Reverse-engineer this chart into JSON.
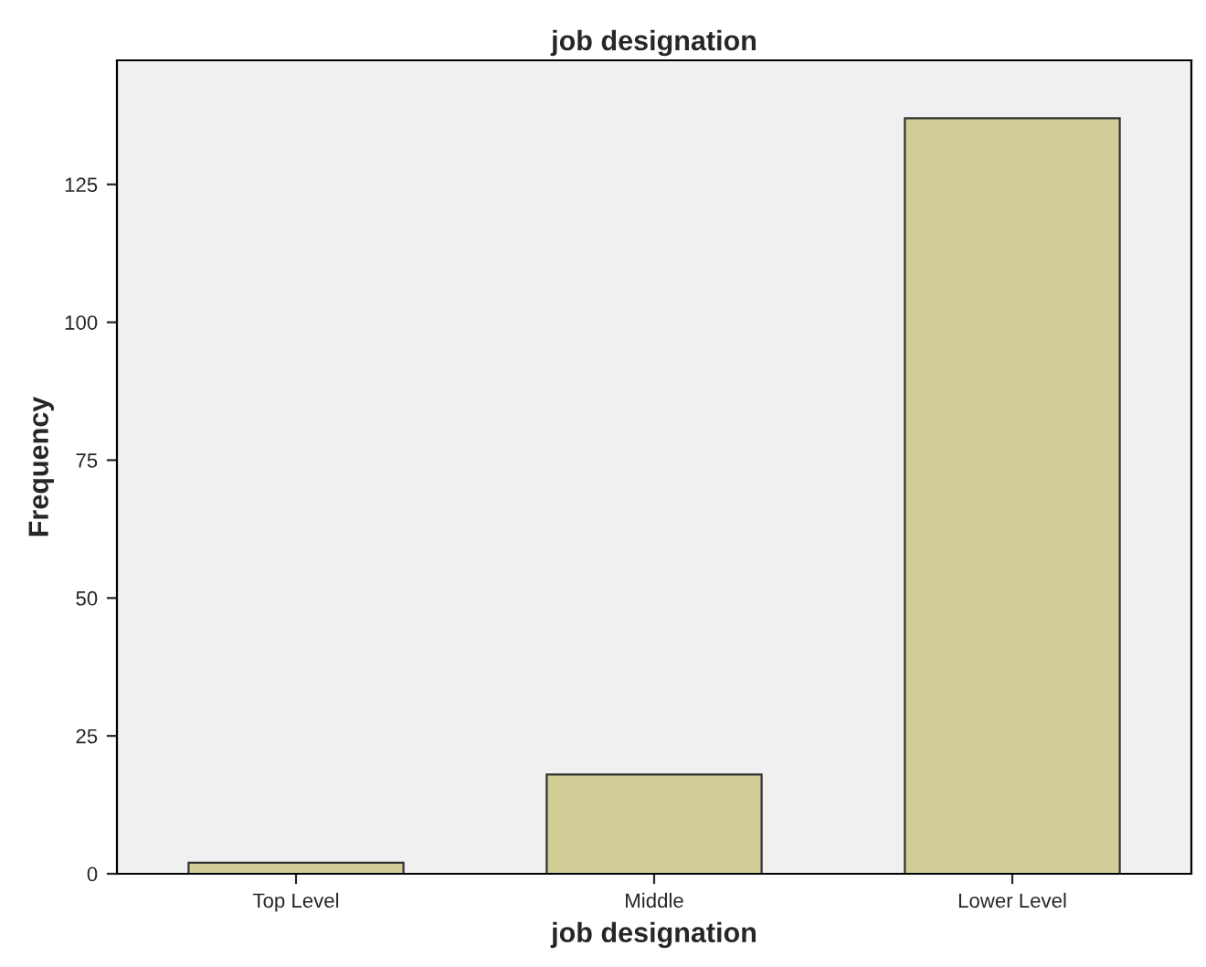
{
  "chart_data": {
    "type": "bar",
    "title": "job designation",
    "xlabel": "job designation",
    "ylabel": "Frequency",
    "categories": [
      "Top Level",
      "Middle",
      "Lower Level"
    ],
    "values": [
      2,
      18,
      137
    ],
    "color": "#d3ce97",
    "ylim": [
      0,
      147.5
    ],
    "yticks": [
      0,
      25,
      50,
      75,
      100,
      125
    ],
    "grid": false
  }
}
